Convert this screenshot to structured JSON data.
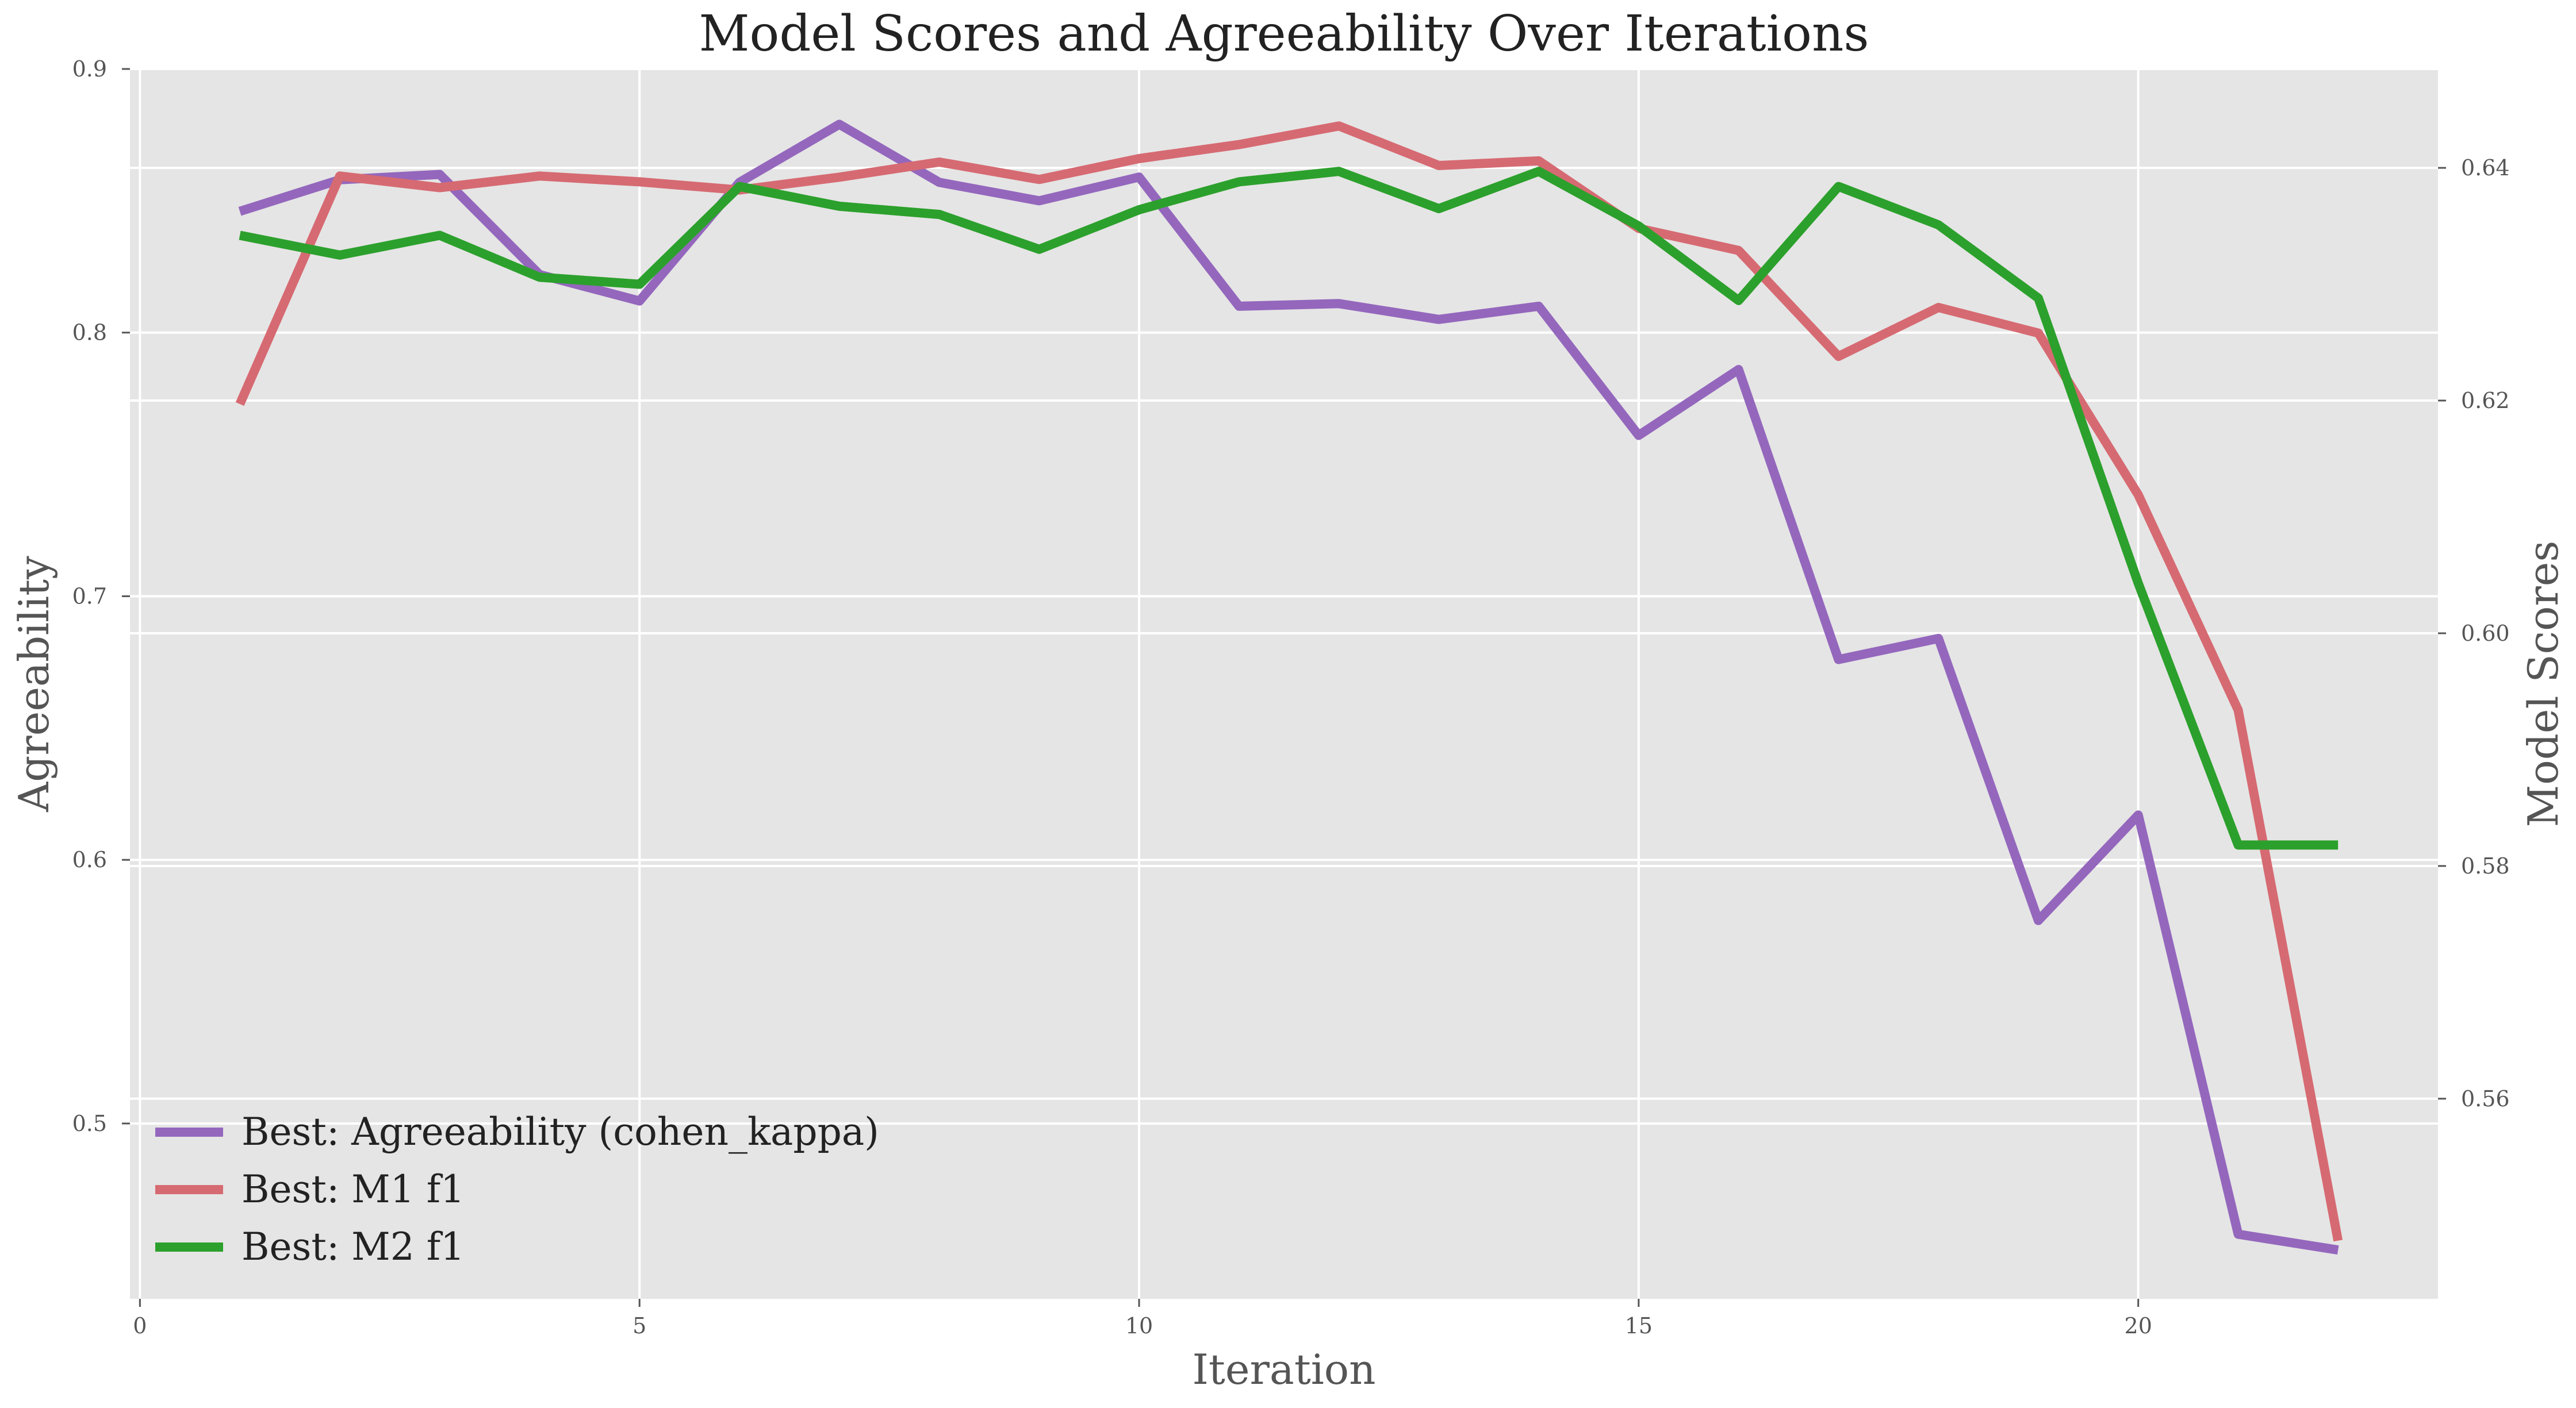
{
  "chart_data": {
    "type": "line",
    "title": "Model Scores and Agreeability Over Iterations",
    "xlabel": "Iteration",
    "ylabel": "Agreeability",
    "y2label": "Model Scores",
    "xlim": [
      -0.1,
      23
    ],
    "ylim": [
      0.4335,
      0.9
    ],
    "y2lim": [
      0.5428,
      0.6485
    ],
    "xticks": [
      "0",
      "5",
      "10",
      "15",
      "20"
    ],
    "xtick_values": [
      0,
      5,
      10,
      15,
      20
    ],
    "yticks": [
      "0.5",
      "0.6",
      "0.7",
      "0.8",
      "0.9"
    ],
    "ytick_values": [
      0.5,
      0.6,
      0.7,
      0.8,
      0.9
    ],
    "y2ticks": [
      "0.56",
      "0.58",
      "0.60",
      "0.62",
      "0.64"
    ],
    "y2tick_values": [
      0.56,
      0.58,
      0.6,
      0.62,
      0.64
    ],
    "grid": true,
    "legend_position": "lower-left",
    "x": [
      1,
      2,
      3,
      4,
      5,
      6,
      7,
      8,
      9,
      10,
      11,
      12,
      13,
      14,
      15,
      16,
      17,
      18,
      19,
      20,
      21,
      22
    ],
    "series": [
      {
        "name": "Best: Agreeability (cohen_kappa)",
        "axis": "left",
        "color": "#9467bd",
        "values": [
          0.846,
          0.858,
          0.86,
          0.822,
          0.812,
          0.857,
          0.879,
          0.857,
          0.85,
          0.859,
          0.81,
          0.811,
          0.805,
          0.81,
          0.761,
          0.786,
          0.676,
          0.684,
          0.577,
          0.617,
          0.458,
          0.452
        ]
      },
      {
        "name": "Best: M1 f1",
        "axis": "right",
        "color": "#d66a72",
        "values": [
          0.6197,
          0.6393,
          0.6383,
          0.6393,
          0.6388,
          0.6381,
          0.6392,
          0.6405,
          0.639,
          0.6408,
          0.642,
          0.6436,
          0.6402,
          0.6406,
          0.6348,
          0.6329,
          0.6238,
          0.628,
          0.6258,
          0.6119,
          0.5934,
          0.5478
        ]
      },
      {
        "name": "Best: M2 f1",
        "axis": "right",
        "color": "#2ca02c",
        "values": [
          0.6342,
          0.6325,
          0.6342,
          0.6306,
          0.63,
          0.6384,
          0.6367,
          0.636,
          0.633,
          0.6364,
          0.6388,
          0.6397,
          0.6365,
          0.6397,
          0.635,
          0.6286,
          0.6384,
          0.6351,
          0.6288,
          0.6043,
          0.5818,
          0.5818
        ]
      }
    ]
  }
}
